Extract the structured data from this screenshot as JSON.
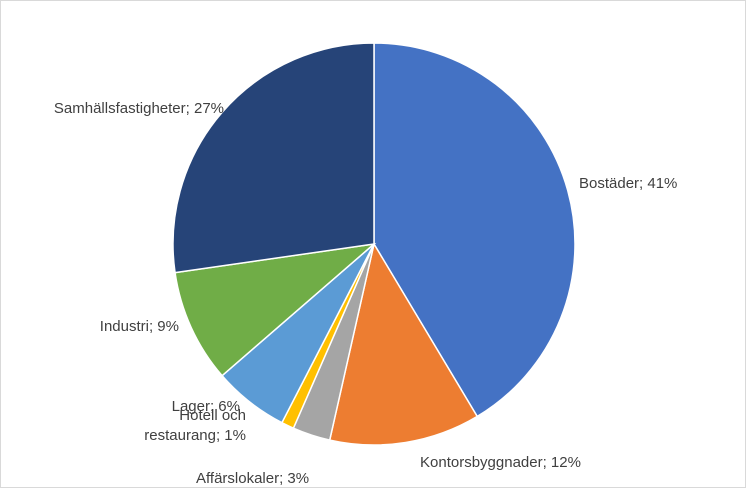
{
  "chart_data": {
    "type": "pie",
    "title": "",
    "legend": "none",
    "start_angle_deg": 0,
    "slices": [
      {
        "name": "Bostäder",
        "value": 41,
        "label": "Bostäder; 41%",
        "color": "#4472C4"
      },
      {
        "name": "Kontorsbyggnader",
        "value": 12,
        "label": "Kontorsbyggnader; 12%",
        "color": "#ED7D31"
      },
      {
        "name": "Affärslokaler",
        "value": 3,
        "label": "Affärslokaler; 3%",
        "color": "#A5A5A5"
      },
      {
        "name": "Hotell och restaurang",
        "value": 1,
        "label": "Hotell och restaurang; 1%",
        "label_lines": [
          "Hotell och",
          "restaurang; 1%"
        ],
        "color": "#FFC000"
      },
      {
        "name": "Lager",
        "value": 6,
        "label": "Lager; 6%",
        "color": "#5B9BD5"
      },
      {
        "name": "Industri",
        "value": 9,
        "label": "Industri; 9%",
        "color": "#70AD47"
      },
      {
        "name": "Samhällsfastigheter",
        "value": 27,
        "label": "Samhällsfastigheter; 27%",
        "color": "#264478"
      }
    ]
  }
}
